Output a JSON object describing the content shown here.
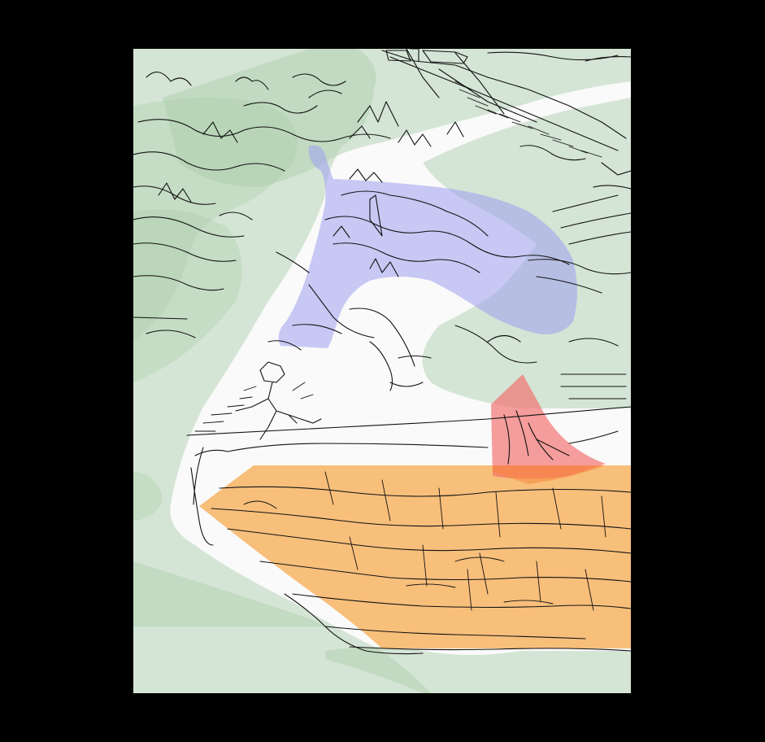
{
  "canvas": {
    "background": "#000000",
    "paper": "#fafafa"
  },
  "regions": [
    {
      "name": "vegetation",
      "color": "#a8cba8",
      "opacity": 0.45
    },
    {
      "name": "water-body",
      "color": "#9f9ff0",
      "opacity": 0.55
    },
    {
      "name": "farmland",
      "color": "#f7a84a",
      "opacity": 0.7
    },
    {
      "name": "building",
      "color": "#f26a6a",
      "opacity": 0.65
    }
  ],
  "linework": {
    "color": "#111111",
    "style": "hand-drawn sketch"
  }
}
